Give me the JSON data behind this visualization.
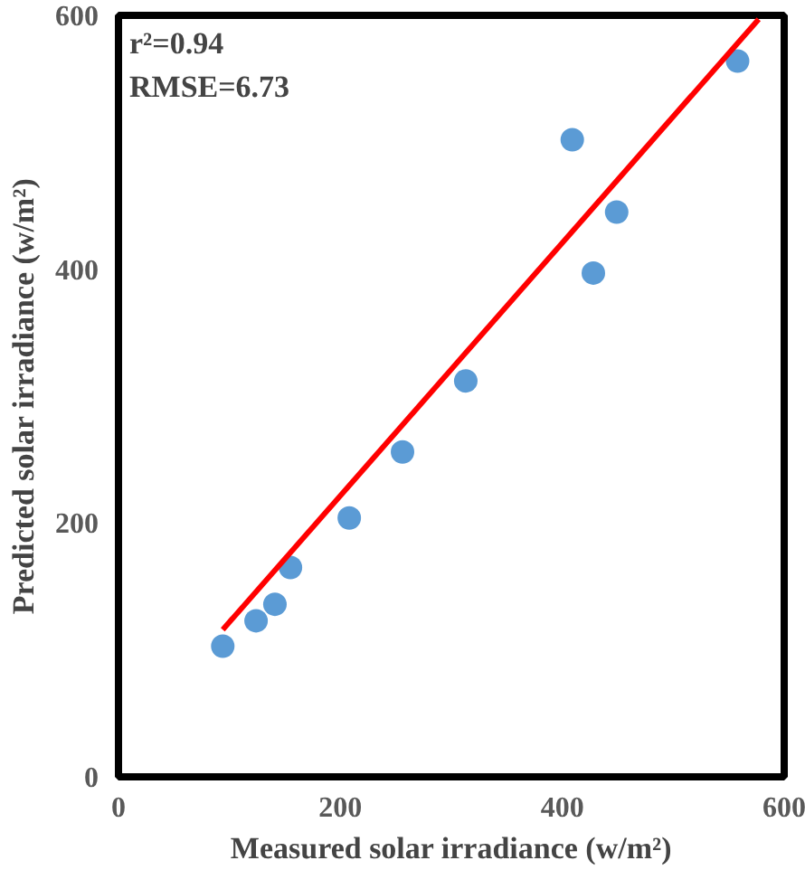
{
  "chart_data": {
    "type": "scatter",
    "xlabel": "Measured solar irradiance (w/m²)",
    "ylabel": "Predicted solar irradiance (w/m²)",
    "xlim": [
      0,
      600
    ],
    "ylim": [
      0,
      600
    ],
    "xticks": [
      0,
      200,
      400,
      600
    ],
    "yticks": [
      0,
      200,
      400,
      600
    ],
    "grid": false,
    "annotations": [
      "r²=0.94",
      "RMSE=6.73"
    ],
    "series": [
      {
        "marker": "circle",
        "color": "#5b9bd5",
        "x": [
          94,
          124,
          141,
          155,
          208,
          256,
          313,
          409,
          428,
          449,
          558
        ],
        "values": [
          103,
          123,
          136,
          165,
          204,
          256,
          312,
          502,
          397,
          445,
          564
        ]
      },
      {
        "type": "line",
        "color": "#ff0000",
        "line_style": "solid",
        "marker": "none",
        "x": [
          94,
          577
        ],
        "values": [
          116,
          597
        ]
      }
    ]
  }
}
